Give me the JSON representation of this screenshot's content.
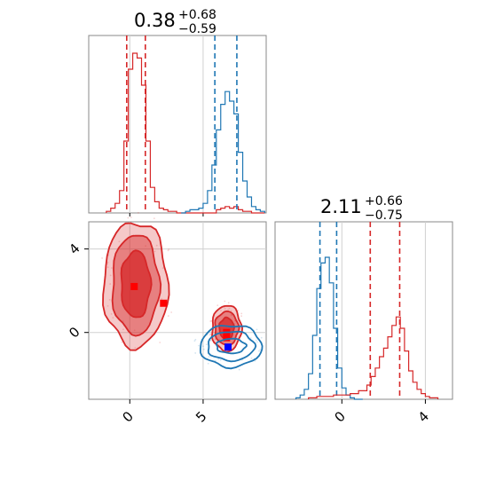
{
  "chart_data": [
    {
      "type": "histogram",
      "panel": "top-left marginal",
      "title": {
        "main": "0.38",
        "plus": "+0.68",
        "minus": "−0.59"
      },
      "xlim": [
        -2.8,
        9.3
      ],
      "grid": true,
      "series": [
        {
          "color": "#d62728",
          "bins_x": [
            -1.6,
            -1.3,
            -1.0,
            -0.7,
            -0.4,
            -0.1,
            0.2,
            0.5,
            0.8,
            1.1,
            1.4,
            1.7,
            2.0,
            2.3,
            2.6,
            2.9,
            3.2,
            3.5,
            3.8,
            4.1,
            4.4,
            4.7,
            5.0,
            5.3,
            5.6,
            5.9,
            6.2,
            6.5,
            6.8,
            7.1,
            7.4,
            7.7,
            8.0,
            8.3,
            8.6,
            8.9
          ],
          "density": [
            0.01,
            0.03,
            0.06,
            0.14,
            0.45,
            0.9,
            1.0,
            0.97,
            0.8,
            0.45,
            0.16,
            0.07,
            0.03,
            0.02,
            0.01,
            0.01,
            0.0,
            0.0,
            0.0,
            0.0,
            0.0,
            0.0,
            0.0,
            0.0,
            0.0,
            0.02,
            0.03,
            0.04,
            0.03,
            0.04,
            0.02,
            0.01,
            0.01,
            0.0,
            0.0,
            0.0
          ],
          "median": 0.38,
          "quantiles": [
            -0.21,
            1.06
          ]
        },
        {
          "color": "#1f77b4",
          "bins_x": [
            3.5,
            3.8,
            4.1,
            4.4,
            4.7,
            5.0,
            5.3,
            5.6,
            5.9,
            6.2,
            6.5,
            6.8,
            7.1,
            7.4,
            7.7,
            8.0,
            8.3,
            8.6,
            8.9
          ],
          "density": [
            0.0,
            0.01,
            0.02,
            0.02,
            0.03,
            0.06,
            0.14,
            0.3,
            0.52,
            0.68,
            0.76,
            0.7,
            0.62,
            0.38,
            0.2,
            0.1,
            0.04,
            0.02,
            0.01
          ],
          "quantiles": [
            5.8,
            7.3
          ]
        }
      ]
    },
    {
      "type": "contour",
      "panel": "bottom-left 2D",
      "xlim": [
        -2.8,
        9.3
      ],
      "ylim": [
        -3.2,
        5.3
      ],
      "xticks": [
        0,
        5
      ],
      "yticks": [
        0,
        4
      ],
      "grid": true,
      "series": [
        {
          "color": "#d62728",
          "filled": true,
          "clusters": [
            {
              "center": [
                0.4,
                2.3
              ],
              "levels_radius": [
                [
                  1.0,
                  1.6
                ],
                [
                  1.6,
                  2.4
                ],
                [
                  2.2,
                  3.0
                ]
              ]
            },
            {
              "center": [
                6.6,
                0.2
              ],
              "levels_radius": [
                [
                  0.5,
                  0.5
                ],
                [
                  0.8,
                  0.8
                ],
                [
                  1.0,
                  1.1
                ]
              ]
            }
          ],
          "markers": [
            [
              0.3,
              2.2
            ],
            [
              2.3,
              1.4
            ],
            [
              6.6,
              0.0
            ],
            [
              6.6,
              -0.25
            ]
          ]
        },
        {
          "color": "#1f77b4",
          "filled": false,
          "clusters": [
            {
              "center": [
                6.9,
                -0.65
              ],
              "levels_radius": [
                [
                  1.0,
                  0.35
                ],
                [
                  1.6,
                  0.7
                ],
                [
                  2.1,
                  1.0
                ]
              ]
            }
          ],
          "markers": [
            [
              6.7,
              -0.7
            ]
          ]
        }
      ]
    },
    {
      "type": "histogram",
      "panel": "bottom-right marginal",
      "title": {
        "main": "2.11",
        "plus": "+0.66",
        "minus": "−0.75"
      },
      "xlim": [
        -3.2,
        5.3
      ],
      "xticks": [
        0,
        4
      ],
      "grid": true,
      "series": [
        {
          "color": "#1f77b4",
          "bins_x": [
            -2.2,
            -2.0,
            -1.8,
            -1.6,
            -1.4,
            -1.2,
            -1.0,
            -0.8,
            -0.6,
            -0.4,
            -0.2,
            0.0,
            0.2,
            0.4,
            0.6,
            0.8
          ],
          "density": [
            0.01,
            0.03,
            0.07,
            0.18,
            0.45,
            0.78,
            0.96,
            1.0,
            0.82,
            0.5,
            0.22,
            0.08,
            0.03,
            0.01,
            0.0,
            0.0
          ],
          "quantiles": [
            -1.05,
            -0.25
          ]
        },
        {
          "color": "#d62728",
          "bins_x": [
            -1.6,
            -1.2,
            -0.8,
            -0.4,
            0.0,
            0.4,
            0.8,
            1.2,
            1.4,
            1.6,
            1.8,
            2.0,
            2.2,
            2.4,
            2.6,
            2.8,
            3.0,
            3.2,
            3.4,
            3.6,
            3.8,
            4.0,
            4.2
          ],
          "density": [
            0.01,
            0.02,
            0.02,
            0.03,
            0.03,
            0.04,
            0.06,
            0.1,
            0.16,
            0.22,
            0.3,
            0.36,
            0.44,
            0.52,
            0.58,
            0.5,
            0.34,
            0.2,
            0.12,
            0.07,
            0.04,
            0.02,
            0.01
          ],
          "median": 2.11,
          "quantiles": [
            1.36,
            2.77
          ]
        }
      ]
    }
  ]
}
